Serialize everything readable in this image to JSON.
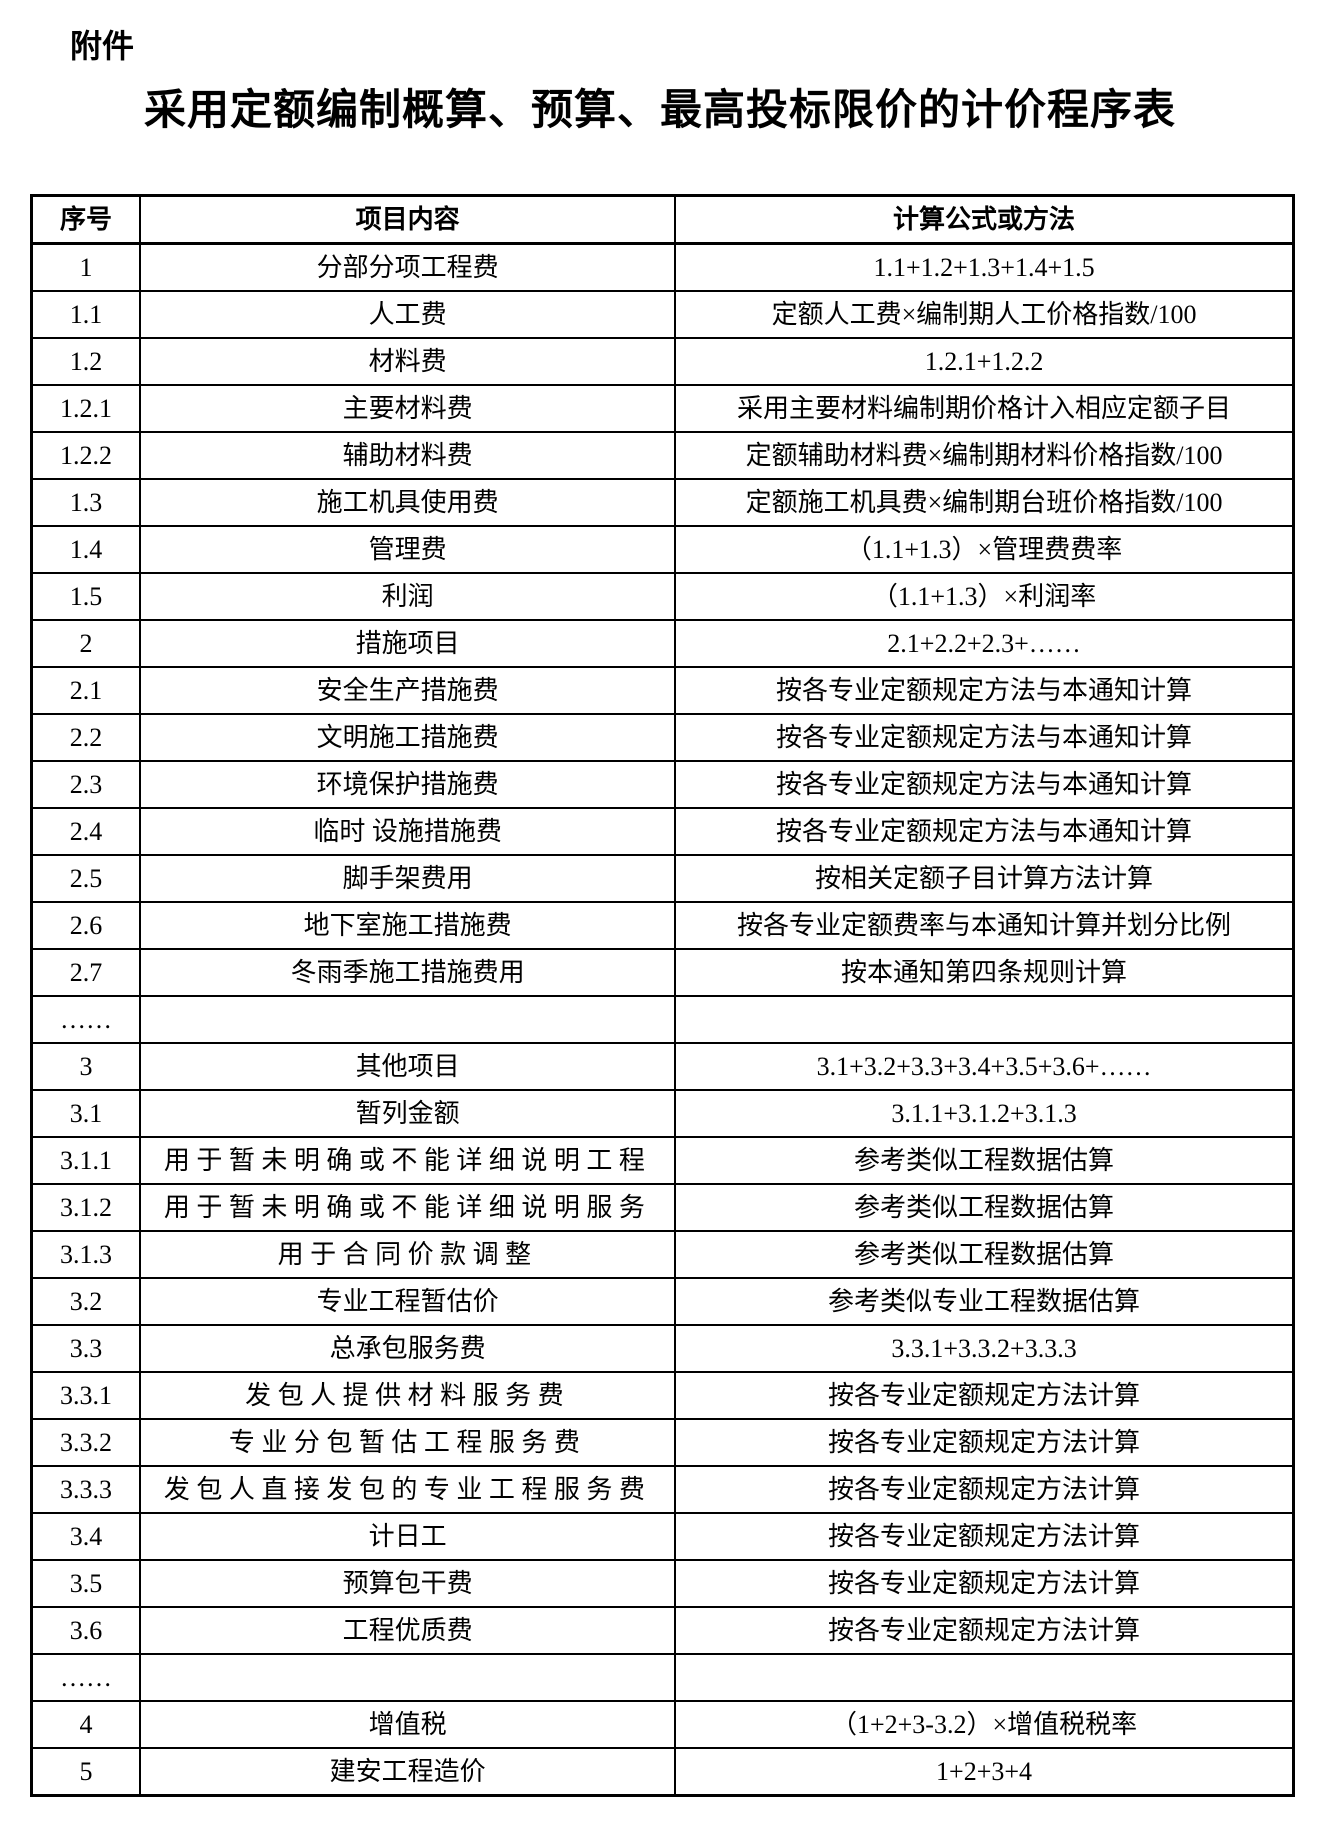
{
  "page": {
    "attachment_label": "附件",
    "title": "采用定额编制概算、预算、最高投标限价的计价程序表",
    "colors": {
      "background": "#ffffff",
      "text": "#000000",
      "table_border": "#000000"
    }
  },
  "table": {
    "headers": [
      "序号",
      "项目内容",
      "计算公式或方法"
    ],
    "rows": [
      {
        "no": "1",
        "item": "分部分项工程费",
        "formula": "1.1+1.2+1.3+1.4+1.5"
      },
      {
        "no": "1.1",
        "item": "人工费",
        "formula": "定额人工费×编制期人工价格指数/100"
      },
      {
        "no": "1.2",
        "item": "材料费",
        "formula": "1.2.1+1.2.2"
      },
      {
        "no": "1.2.1",
        "item": "主要材料费",
        "formula": "采用主要材料编制期价格计入相应定额子目"
      },
      {
        "no": "1.2.2",
        "item": "辅助材料费",
        "formula": "定额辅助材料费×编制期材料价格指数/100"
      },
      {
        "no": "1.3",
        "item": "施工机具使用费",
        "formula": "定额施工机具费×编制期台班价格指数/100"
      },
      {
        "no": "1.4",
        "item": "管理费",
        "formula": "（1.1+1.3）×管理费费率"
      },
      {
        "no": "1.5",
        "item": "利润",
        "formula": "（1.1+1.3）×利润率"
      },
      {
        "no": "2",
        "item": "措施项目",
        "formula": "2.1+2.2+2.3+……"
      },
      {
        "no": "2.1",
        "item": "安全生产措施费",
        "formula": "按各专业定额规定方法与本通知计算"
      },
      {
        "no": "2.2",
        "item": "文明施工措施费",
        "formula": "按各专业定额规定方法与本通知计算"
      },
      {
        "no": "2.3",
        "item": "环境保护措施费",
        "formula": "按各专业定额规定方法与本通知计算"
      },
      {
        "no": "2.4",
        "item": "临时 设施措施费",
        "formula": "按各专业定额规定方法与本通知计算"
      },
      {
        "no": "2.5",
        "item": "脚手架费用",
        "formula": "按相关定额子目计算方法计算"
      },
      {
        "no": "2.6",
        "item": "地下室施工措施费",
        "formula": "按各专业定额费率与本通知计算并划分比例"
      },
      {
        "no": "2.7",
        "item": "冬雨季施工措施费用",
        "formula": "按本通知第四条规则计算"
      },
      {
        "no": "……",
        "item": "",
        "formula": ""
      },
      {
        "no": "3",
        "item": "其他项目",
        "formula": "3.1+3.2+3.3+3.4+3.5+3.6+……"
      },
      {
        "no": "3.1",
        "item": "暂列金额",
        "formula": "3.1.1+3.1.2+3.1.3"
      },
      {
        "no": "3.1.1",
        "item": "用于暂未明确或不能详细说明工程",
        "formula": "参考类似工程数据估算",
        "item_spread": true
      },
      {
        "no": "3.1.2",
        "item": "用于暂未明确或不能详细说明服务",
        "formula": "参考类似工程数据估算",
        "item_spread": true
      },
      {
        "no": "3.1.3",
        "item": "用于合同价款调整",
        "formula": "参考类似工程数据估算",
        "item_spread": true
      },
      {
        "no": "3.2",
        "item": "专业工程暂估价",
        "formula": "参考类似专业工程数据估算"
      },
      {
        "no": "3.3",
        "item": "总承包服务费",
        "formula": "3.3.1+3.3.2+3.3.3"
      },
      {
        "no": "3.3.1",
        "item": "发包人提供材料服务费",
        "formula": "按各专业定额规定方法计算",
        "item_spread": true
      },
      {
        "no": "3.3.2",
        "item": "专业分包暂估工程服务费",
        "formula": "按各专业定额规定方法计算",
        "item_spread": true
      },
      {
        "no": "3.3.3",
        "item": "发包人直接发包的专业工程服务费",
        "formula": "按各专业定额规定方法计算",
        "item_spread": true
      },
      {
        "no": "3.4",
        "item": "计日工",
        "formula": "按各专业定额规定方法计算"
      },
      {
        "no": "3.5",
        "item": "预算包干费",
        "formula": "按各专业定额规定方法计算"
      },
      {
        "no": "3.6",
        "item": "工程优质费",
        "formula": "按各专业定额规定方法计算"
      },
      {
        "no": "……",
        "item": "",
        "formula": ""
      },
      {
        "no": "4",
        "item": "增值税",
        "formula": "（1+2+3-3.2）×增值税税率"
      },
      {
        "no": "5",
        "item": "建安工程造价",
        "formula": "1+2+3+4"
      }
    ]
  }
}
